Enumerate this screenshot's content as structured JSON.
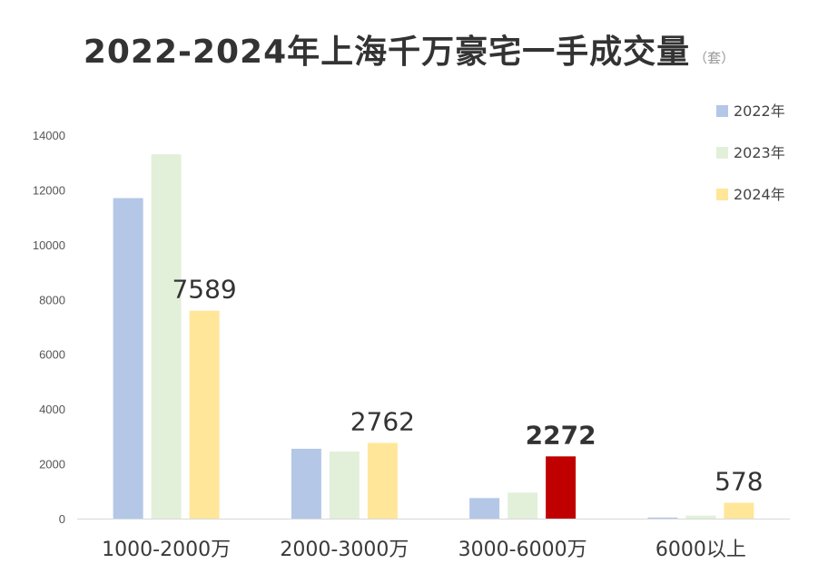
{
  "title": "2022-2024年上海千万豪宅一手成交量",
  "unit": "（套）",
  "chart_data": {
    "type": "bar",
    "categories": [
      "1000-2000万",
      "2000-3000万",
      "3000-6000万",
      "6000以上"
    ],
    "series": [
      {
        "name": "2022年",
        "color": "#b4c7e7",
        "values": [
          11700,
          2550,
          750,
          40
        ]
      },
      {
        "name": "2023年",
        "color": "#e2f0d9",
        "values": [
          13300,
          2450,
          950,
          110
        ]
      },
      {
        "name": "2024年",
        "color": "#ffe699",
        "values": [
          7589,
          2762,
          2272,
          578
        ]
      }
    ],
    "highlight": {
      "series": 2,
      "category": 2,
      "color": "#c00000"
    },
    "data_labels": [
      {
        "series": 2,
        "category": 0,
        "text": "7589",
        "color": "#333333"
      },
      {
        "series": 2,
        "category": 1,
        "text": "2762",
        "color": "#333333"
      },
      {
        "series": 2,
        "category": 2,
        "text": "2272",
        "color": "#c00000"
      },
      {
        "series": 2,
        "category": 3,
        "text": "578",
        "color": "#333333"
      }
    ],
    "yticks": [
      0,
      2000,
      4000,
      6000,
      8000,
      10000,
      12000,
      14000
    ],
    "ylim": [
      0,
      14000
    ],
    "grid": false,
    "legend_position": "right"
  }
}
